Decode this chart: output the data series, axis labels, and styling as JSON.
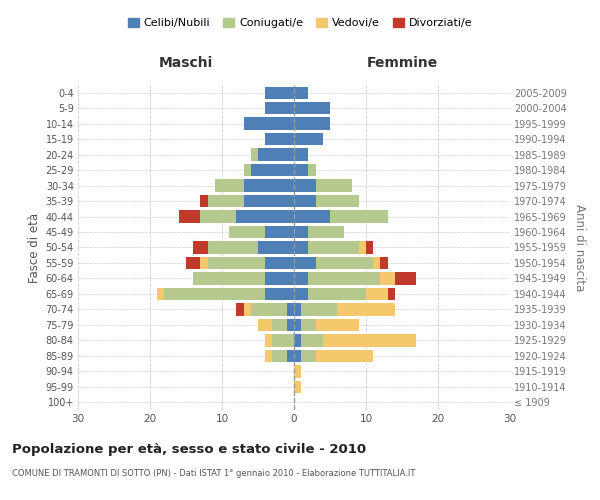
{
  "age_groups": [
    "100+",
    "95-99",
    "90-94",
    "85-89",
    "80-84",
    "75-79",
    "70-74",
    "65-69",
    "60-64",
    "55-59",
    "50-54",
    "45-49",
    "40-44",
    "35-39",
    "30-34",
    "25-29",
    "20-24",
    "15-19",
    "10-14",
    "5-9",
    "0-4"
  ],
  "birth_years": [
    "≤ 1909",
    "1910-1914",
    "1915-1919",
    "1920-1924",
    "1925-1929",
    "1930-1934",
    "1935-1939",
    "1940-1944",
    "1945-1949",
    "1950-1954",
    "1955-1959",
    "1960-1964",
    "1965-1969",
    "1970-1974",
    "1975-1979",
    "1980-1984",
    "1985-1989",
    "1990-1994",
    "1995-1999",
    "2000-2004",
    "2005-2009"
  ],
  "maschi": {
    "celibi": [
      0,
      0,
      0,
      1,
      0,
      1,
      1,
      4,
      4,
      4,
      5,
      4,
      8,
      7,
      7,
      6,
      5,
      4,
      7,
      4,
      4
    ],
    "coniugati": [
      0,
      0,
      0,
      2,
      3,
      2,
      5,
      14,
      10,
      8,
      7,
      5,
      5,
      5,
      4,
      1,
      1,
      0,
      0,
      0,
      0
    ],
    "vedovi": [
      0,
      0,
      0,
      1,
      1,
      2,
      1,
      1,
      0,
      1,
      0,
      0,
      0,
      0,
      0,
      0,
      0,
      0,
      0,
      0,
      0
    ],
    "divorziati": [
      0,
      0,
      0,
      0,
      0,
      0,
      1,
      0,
      0,
      2,
      2,
      0,
      3,
      1,
      0,
      0,
      0,
      0,
      0,
      0,
      0
    ]
  },
  "femmine": {
    "nubili": [
      0,
      0,
      0,
      1,
      1,
      1,
      1,
      2,
      2,
      3,
      2,
      2,
      5,
      3,
      3,
      2,
      2,
      4,
      5,
      5,
      2
    ],
    "coniugate": [
      0,
      0,
      0,
      2,
      3,
      2,
      5,
      8,
      10,
      8,
      7,
      5,
      8,
      6,
      5,
      1,
      0,
      0,
      0,
      0,
      0
    ],
    "vedove": [
      0,
      1,
      1,
      8,
      13,
      6,
      8,
      3,
      2,
      1,
      1,
      0,
      0,
      0,
      0,
      0,
      0,
      0,
      0,
      0,
      0
    ],
    "divorziate": [
      0,
      0,
      0,
      0,
      0,
      0,
      0,
      1,
      3,
      1,
      1,
      0,
      0,
      0,
      0,
      0,
      0,
      0,
      0,
      0,
      0
    ]
  },
  "colors": {
    "celibi_nubili": "#4e7fb5",
    "coniugati": "#b5c98e",
    "vedovi": "#f5c86e",
    "divorziati": "#c0392b"
  },
  "title": "Popolazione per età, sesso e stato civile - 2010",
  "subtitle": "COMUNE DI TRAMONTI DI SOTTO (PN) - Dati ISTAT 1° gennaio 2010 - Elaborazione TUTTITALIA.IT",
  "xlabel_left": "Maschi",
  "xlabel_right": "Femmine",
  "ylabel_left": "Fasce di età",
  "ylabel_right": "Anni di nascita",
  "xlim": 30,
  "legend_labels": [
    "Celibi/Nubili",
    "Coniugati/e",
    "Vedovi/e",
    "Divorziati/e"
  ],
  "background_color": "#ffffff",
  "grid_color": "#cccccc"
}
